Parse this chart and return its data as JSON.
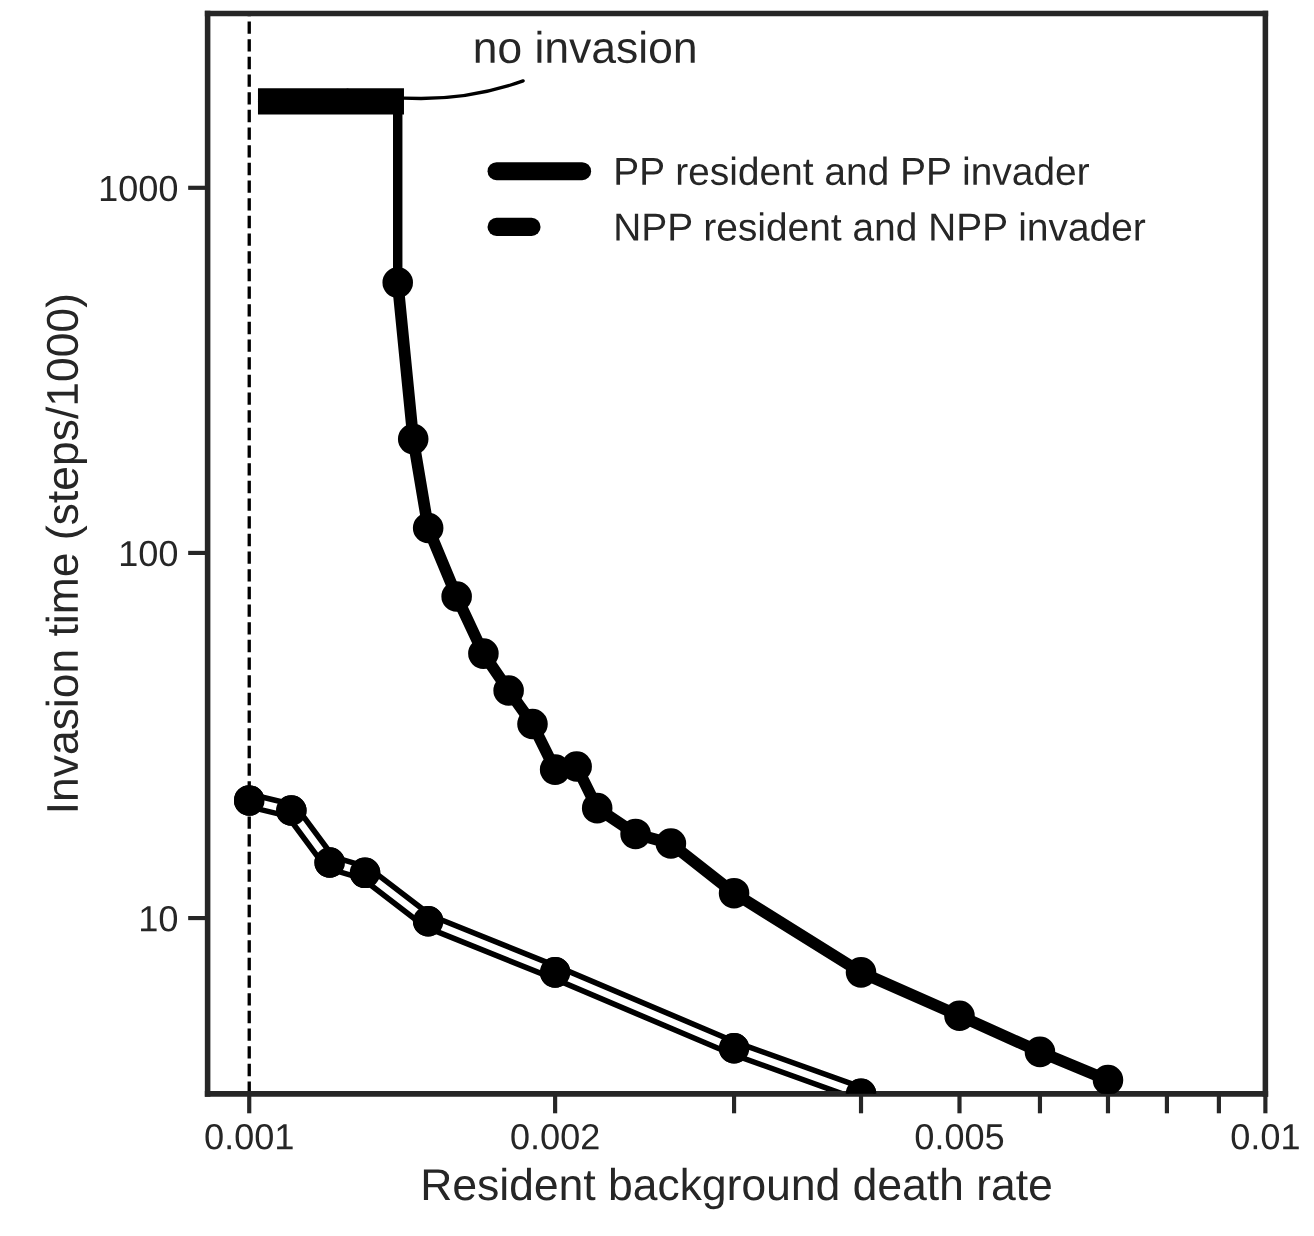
{
  "chart_data": {
    "type": "line",
    "xlabel": "Resident background death rate",
    "ylabel": "Invasion time (steps/1000)",
    "log": "xy",
    "xlim": [
      0.00091,
      0.01
    ],
    "ylim": [
      3.3,
      3000
    ],
    "xticks": [
      0.001,
      0.002,
      {
        "value": 0.003,
        "label": null
      },
      {
        "value": 0.004,
        "label": null
      },
      0.005,
      {
        "value": 0.006,
        "label": null
      },
      {
        "value": 0.007,
        "label": null
      },
      {
        "value": 0.008,
        "label": null
      },
      {
        "value": 0.009,
        "label": null
      },
      0.01
    ],
    "yticks": [
      10,
      100,
      1000
    ],
    "grid": false,
    "legend": "top right",
    "series": [
      {
        "name": "PP resident and PP invader",
        "color": "#000000",
        "marker": "circle",
        "x": [
          0.0014,
          0.00145,
          0.0015,
          0.0016,
          0.0017,
          0.0018,
          0.0019,
          0.002,
          0.0021,
          0.0022,
          0.0024,
          0.0026,
          0.003,
          0.004,
          0.005,
          0.006,
          0.007
        ],
        "values": [
          550,
          205,
          117,
          76,
          53,
          42,
          34,
          25.5,
          26,
          20,
          17,
          16,
          11.7,
          7.1,
          5.4,
          4.3,
          3.6
        ]
      },
      {
        "name": "NPP resident and NPP invader",
        "color": "#000000",
        "marker": "circle",
        "x": [
          0.001,
          0.0011,
          0.0012,
          0.0013,
          0.0015,
          0.002,
          0.003,
          0.004
        ],
        "values": [
          21,
          19.7,
          14.2,
          13.3,
          9.8,
          7.1,
          4.4,
          3.3
        ]
      },
      {
        "color": "#000000",
        "marker": "none",
        "x": [
          0.00102,
          0.0014,
          0.0014
        ],
        "values": [
          1725,
          1725,
          550
        ]
      },
      {
        "color": "#000000",
        "marker": "none",
        "x": [
          0.00102,
          0.00142
        ],
        "values": [
          1725,
          1725
        ]
      }
    ],
    "ref_lines": [
      {
        "axis": "x",
        "value": 0.001,
        "color": "#000000",
        "line_style": "dashed"
      }
    ],
    "annotations": [
      {
        "text": "no invasion",
        "x": 0.00125,
        "y": 1850
      }
    ]
  }
}
